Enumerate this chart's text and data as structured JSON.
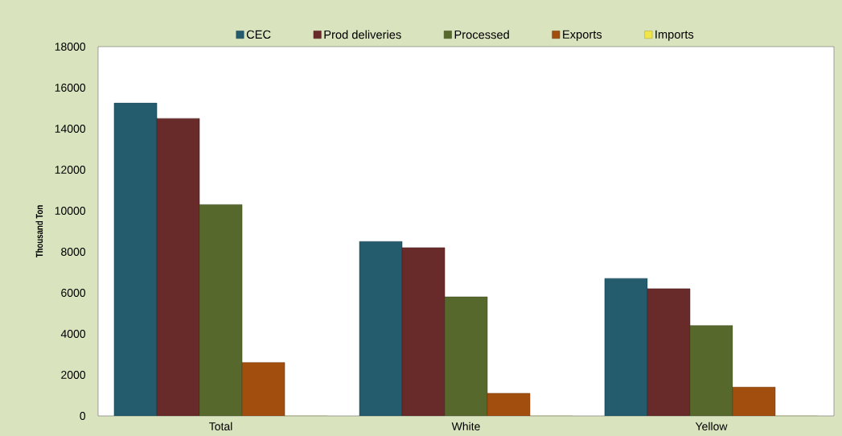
{
  "chart_data": {
    "type": "bar",
    "ylabel": "Thousand Ton",
    "categories": [
      "Total",
      "White",
      "Yellow"
    ],
    "series": [
      {
        "name": "CEC",
        "color": "#245c6e",
        "values": [
          15250,
          8500,
          6700
        ]
      },
      {
        "name": "Prod deliveries",
        "color": "#692a2a",
        "values": [
          14500,
          8200,
          6200
        ]
      },
      {
        "name": "Processed",
        "color": "#56682c",
        "values": [
          10300,
          5800,
          4400
        ]
      },
      {
        "name": "Exports",
        "color": "#a24e0e",
        "values": [
          2600,
          1100,
          1400
        ]
      },
      {
        "name": "Imports",
        "color": "#f0e64a",
        "values": [
          0,
          0,
          0
        ]
      }
    ],
    "ylim": [
      0,
      18000
    ],
    "yticks": [
      0,
      2000,
      4000,
      6000,
      8000,
      10000,
      12000,
      14000,
      16000,
      18000
    ],
    "grid": false,
    "legend": "top"
  }
}
